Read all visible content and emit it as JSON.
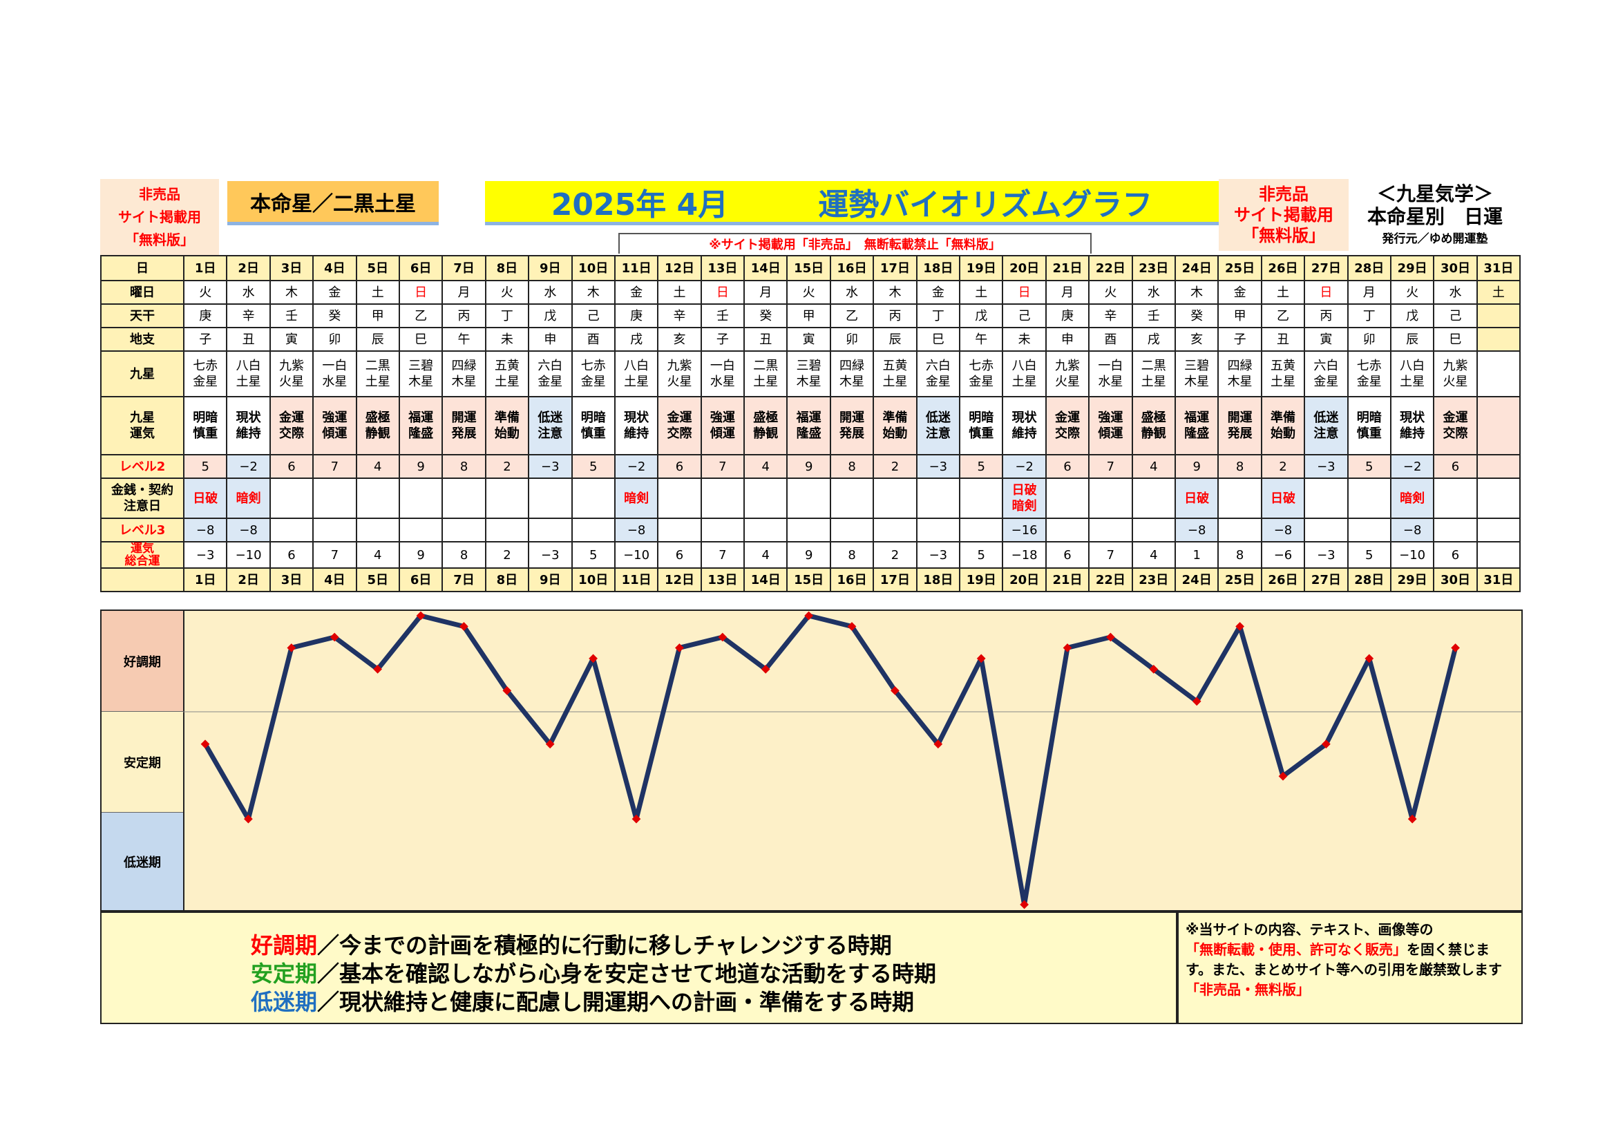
{
  "header": {
    "left_badge": [
      "非売品",
      "サイト掲載用",
      "「無料版」"
    ],
    "honmei": "本命星／二黒土星",
    "title_date": "2025年 4月",
    "title_main": "運勢バイオリズムグラフ",
    "right_badge": [
      "非売品",
      "サイト掲載用",
      "「無料版」"
    ],
    "right_lines": [
      "＜九星気学＞",
      "本命星別　日運",
      "発行元／ゆめ開運塾"
    ],
    "notice": "※サイト掲載用「非売品」　無断転載禁止「無料版」"
  },
  "row_labels": {
    "day": "日",
    "weekday": "曜日",
    "tenkan": "天干",
    "chishi": "地支",
    "kyusei": "九星",
    "kyusei_unki": [
      "九星",
      "運気"
    ],
    "level2": "レベル2",
    "kinsen": [
      "金銭・契約",
      "注意日"
    ],
    "level3": "レベル3",
    "total": [
      "運気",
      "総合運"
    ]
  },
  "days": [
    "1日",
    "2日",
    "3日",
    "4日",
    "5日",
    "6日",
    "7日",
    "8日",
    "9日",
    "10日",
    "11日",
    "12日",
    "13日",
    "14日",
    "15日",
    "16日",
    "17日",
    "18日",
    "19日",
    "20日",
    "21日",
    "22日",
    "23日",
    "24日",
    "25日",
    "26日",
    "27日",
    "28日",
    "29日",
    "30日",
    "31日"
  ],
  "weekdays": [
    "火",
    "水",
    "木",
    "金",
    "土",
    "日",
    "月",
    "火",
    "水",
    "木",
    "金",
    "土",
    "日",
    "月",
    "火",
    "水",
    "木",
    "金",
    "土",
    "日",
    "月",
    "火",
    "水",
    "木",
    "金",
    "土",
    "日",
    "月",
    "火",
    "水",
    "土"
  ],
  "tenkan": [
    "庚",
    "辛",
    "壬",
    "癸",
    "甲",
    "乙",
    "丙",
    "丁",
    "戊",
    "己",
    "庚",
    "辛",
    "壬",
    "癸",
    "甲",
    "乙",
    "丙",
    "丁",
    "戊",
    "己",
    "庚",
    "辛",
    "壬",
    "癸",
    "甲",
    "乙",
    "丙",
    "丁",
    "戊",
    "己",
    ""
  ],
  "chishi": [
    "子",
    "丑",
    "寅",
    "卯",
    "辰",
    "巳",
    "午",
    "未",
    "申",
    "酉",
    "戌",
    "亥",
    "子",
    "丑",
    "寅",
    "卯",
    "辰",
    "巳",
    "午",
    "未",
    "申",
    "酉",
    "戌",
    "亥",
    "子",
    "丑",
    "寅",
    "卯",
    "辰",
    "巳",
    ""
  ],
  "kyusei": [
    [
      "七赤",
      "金星"
    ],
    [
      "八白",
      "土星"
    ],
    [
      "九紫",
      "火星"
    ],
    [
      "一白",
      "水星"
    ],
    [
      "二黒",
      "土星"
    ],
    [
      "三碧",
      "木星"
    ],
    [
      "四緑",
      "木星"
    ],
    [
      "五黄",
      "土星"
    ],
    [
      "六白",
      "金星"
    ],
    [
      "七赤",
      "金星"
    ],
    [
      "八白",
      "土星"
    ],
    [
      "九紫",
      "火星"
    ],
    [
      "一白",
      "水星"
    ],
    [
      "二黒",
      "土星"
    ],
    [
      "三碧",
      "木星"
    ],
    [
      "四緑",
      "木星"
    ],
    [
      "五黄",
      "土星"
    ],
    [
      "六白",
      "金星"
    ],
    [
      "七赤",
      "金星"
    ],
    [
      "八白",
      "土星"
    ],
    [
      "九紫",
      "火星"
    ],
    [
      "一白",
      "水星"
    ],
    [
      "二黒",
      "土星"
    ],
    [
      "三碧",
      "木星"
    ],
    [
      "四緑",
      "木星"
    ],
    [
      "五黄",
      "土星"
    ],
    [
      "六白",
      "金星"
    ],
    [
      "七赤",
      "金星"
    ],
    [
      "八白",
      "土星"
    ],
    [
      "九紫",
      "火星"
    ],
    [
      "",
      ""
    ]
  ],
  "unki": [
    [
      "明暗",
      "慎重"
    ],
    [
      "現状",
      "維持"
    ],
    [
      "金運",
      "交際"
    ],
    [
      "強運",
      "傾運"
    ],
    [
      "盛極",
      "静観"
    ],
    [
      "福運",
      "隆盛"
    ],
    [
      "開運",
      "発展"
    ],
    [
      "準備",
      "始動"
    ],
    [
      "低迷",
      "注意"
    ],
    [
      "明暗",
      "慎重"
    ],
    [
      "現状",
      "維持"
    ],
    [
      "金運",
      "交際"
    ],
    [
      "強運",
      "傾運"
    ],
    [
      "盛極",
      "静観"
    ],
    [
      "福運",
      "隆盛"
    ],
    [
      "開運",
      "発展"
    ],
    [
      "準備",
      "始動"
    ],
    [
      "低迷",
      "注意"
    ],
    [
      "明暗",
      "慎重"
    ],
    [
      "現状",
      "維持"
    ],
    [
      "金運",
      "交際"
    ],
    [
      "強運",
      "傾運"
    ],
    [
      "盛極",
      "静観"
    ],
    [
      "福運",
      "隆盛"
    ],
    [
      "開運",
      "発展"
    ],
    [
      "準備",
      "始動"
    ],
    [
      "低迷",
      "注意"
    ],
    [
      "明暗",
      "慎重"
    ],
    [
      "現状",
      "維持"
    ],
    [
      "金運",
      "交際"
    ],
    [
      "",
      ""
    ]
  ],
  "level2": [
    "5",
    "−2",
    "6",
    "7",
    "4",
    "9",
    "8",
    "2",
    "−3",
    "5",
    "−2",
    "6",
    "7",
    "4",
    "9",
    "8",
    "2",
    "−3",
    "5",
    "−2",
    "6",
    "7",
    "4",
    "9",
    "8",
    "2",
    "−3",
    "5",
    "−2",
    "6",
    ""
  ],
  "kinsen": [
    [
      "日破"
    ],
    [
      "暗剣"
    ],
    [],
    [],
    [],
    [],
    [],
    [],
    [],
    [],
    [
      "暗剣"
    ],
    [],
    [],
    [],
    [],
    [],
    [],
    [],
    [],
    [
      "日破",
      "暗剣"
    ],
    [],
    [],
    [],
    [
      "日破"
    ],
    [],
    [
      "日破"
    ],
    [],
    [],
    [
      "暗剣"
    ],
    [],
    []
  ],
  "level3": [
    "−8",
    "−8",
    "",
    "",
    "",
    "",
    "",
    "",
    "",
    "",
    "−8",
    "",
    "",
    "",
    "",
    "",
    "",
    "",
    "",
    "−16",
    "",
    "",
    "",
    "−8",
    "",
    "−8",
    "",
    "",
    "−8",
    "",
    ""
  ],
  "total": [
    "−3",
    "−10",
    "6",
    "7",
    "4",
    "9",
    "8",
    "2",
    "−3",
    "5",
    "−10",
    "6",
    "7",
    "4",
    "9",
    "8",
    "2",
    "−3",
    "5",
    "−18",
    "6",
    "7",
    "4",
    "1",
    "8",
    "−6",
    "−3",
    "5",
    "−10",
    "6",
    ""
  ],
  "bands": [
    "好調期",
    "安定期",
    "低迷期"
  ],
  "chart_data": {
    "type": "line",
    "x": [
      1,
      2,
      3,
      4,
      5,
      6,
      7,
      8,
      9,
      10,
      11,
      12,
      13,
      14,
      15,
      16,
      17,
      18,
      19,
      20,
      21,
      22,
      23,
      24,
      25,
      26,
      27,
      28,
      29,
      30
    ],
    "series": [
      {
        "values": [
          -3,
          -10,
          6,
          7,
          4,
          9,
          8,
          2,
          -3,
          5,
          -10,
          6,
          7,
          4,
          9,
          8,
          2,
          -3,
          5,
          -18,
          6,
          7,
          4,
          1,
          8,
          -6,
          -3,
          5,
          -10,
          6
        ]
      }
    ],
    "ylim": [
      -18,
      9
    ],
    "line_color": "#1f3364",
    "marker_color": "#e00000"
  },
  "footer": {
    "lines": [
      {
        "head": "好調期",
        "rest": "／今までの計画を積極的に行動に移しチャレンジする時期",
        "color": "#ff0000"
      },
      {
        "head": "安定期",
        "rest": "／基本を確認しながら心身を安定させて地道な活動をする時期",
        "color": "#22a020"
      },
      {
        "head": "低迷期",
        "rest": "／現状維持と健康に配慮し開運期への計画・準備をする時期",
        "color": "#1f6fc0"
      }
    ],
    "right": {
      "a": "※当サイトの内容、テキスト、画像等の",
      "b": "「無断転載・使用、許可なく販売」",
      "c": "を固く禁じます。また、まとめサイト等への引用を厳禁致します",
      "d": "「非売品・無料版」"
    }
  }
}
